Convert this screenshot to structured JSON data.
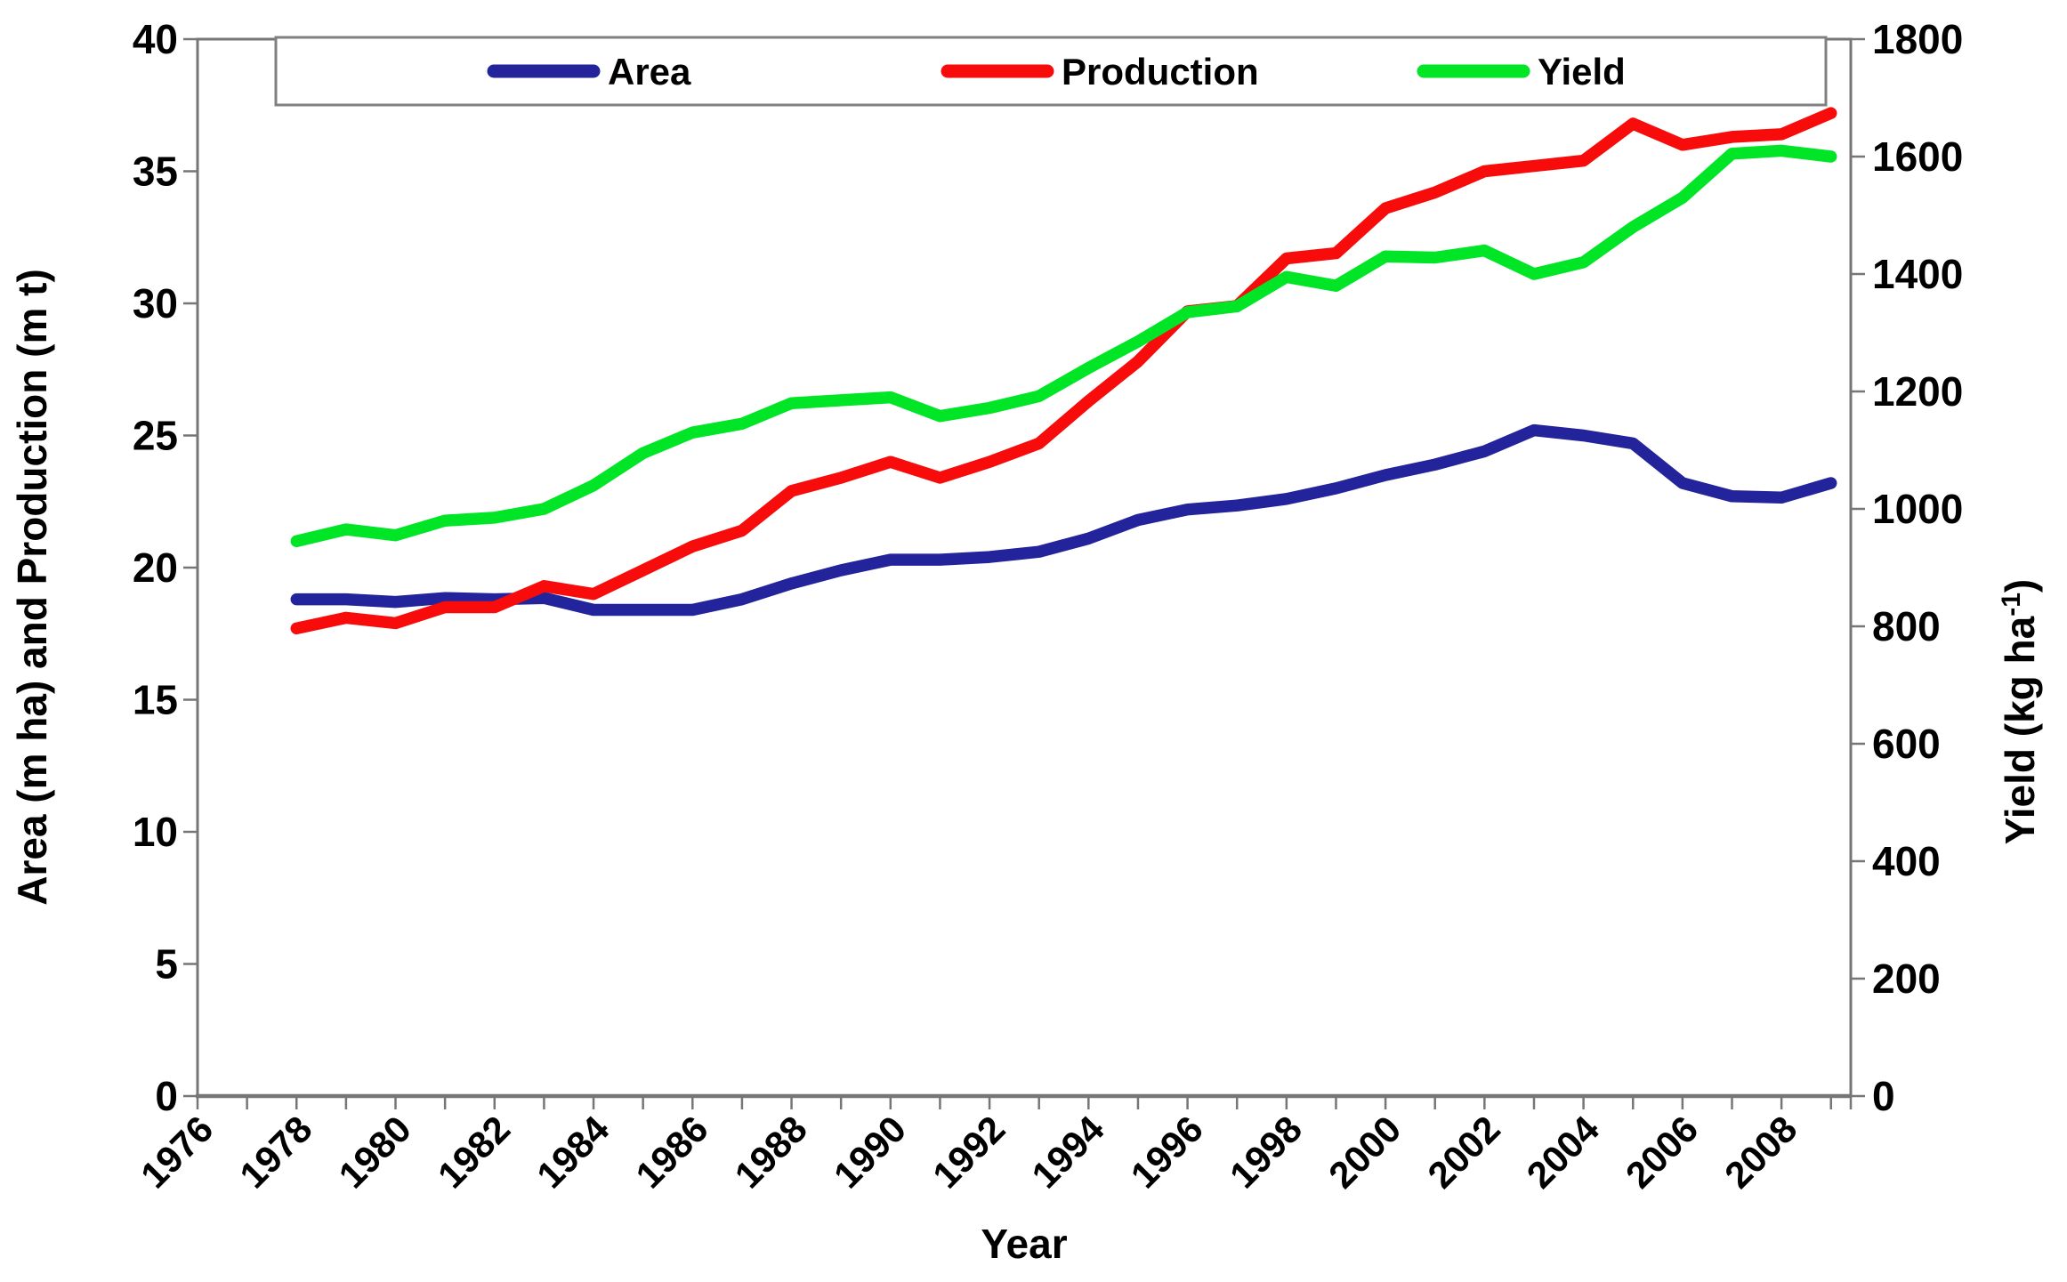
{
  "chart_data": {
    "type": "line",
    "title": "",
    "x": [
      1978,
      1979,
      1980,
      1981,
      1982,
      1983,
      1984,
      1985,
      1986,
      1987,
      1988,
      1989,
      1990,
      1991,
      1992,
      1993,
      1994,
      1995,
      1996,
      1997,
      1998,
      1999,
      2000,
      2001,
      2002,
      2003,
      2004,
      2005,
      2006,
      2007,
      2008,
      2009
    ],
    "series": [
      {
        "name": "Area",
        "axis": "left",
        "color": "#23239b",
        "values": [
          18.8,
          18.8,
          18.7,
          18.85,
          18.8,
          18.85,
          18.4,
          18.4,
          18.4,
          18.8,
          19.4,
          19.9,
          20.3,
          20.3,
          20.4,
          20.6,
          21.1,
          21.8,
          22.2,
          22.35,
          22.6,
          23.0,
          23.5,
          23.9,
          24.4,
          25.2,
          25.0,
          24.7,
          23.2,
          22.7,
          22.65,
          23.2
        ]
      },
      {
        "name": "Production",
        "axis": "left",
        "color": "#f80b0b",
        "values": [
          17.7,
          18.1,
          17.9,
          18.5,
          18.5,
          19.3,
          19.0,
          19.9,
          20.8,
          21.4,
          22.9,
          23.4,
          24.0,
          23.4,
          24.0,
          24.7,
          26.3,
          27.8,
          29.7,
          29.9,
          31.7,
          31.9,
          33.6,
          34.2,
          35.0,
          35.2,
          35.4,
          36.8,
          36.0,
          36.3,
          36.4,
          37.2
        ]
      },
      {
        "name": "Yield",
        "axis": "right",
        "color": "#00e626",
        "values": [
          945,
          965,
          955,
          980,
          985,
          1000,
          1040,
          1095,
          1130,
          1145,
          1180,
          1185,
          1190,
          1158,
          1172,
          1192,
          1240,
          1285,
          1335,
          1345,
          1395,
          1380,
          1430,
          1428,
          1440,
          1400,
          1420,
          1480,
          1530,
          1605,
          1610,
          1600
        ]
      }
    ],
    "x_axis": {
      "label": "Year",
      "min": 1976,
      "max": 2009.4,
      "tick_step": 1,
      "tick_labels": [
        "1976",
        "1978",
        "1980",
        "1982",
        "1984",
        "1986",
        "1988",
        "1990",
        "1992",
        "1994",
        "1996",
        "1998",
        "2000",
        "2002",
        "2004",
        "2006",
        "2008"
      ]
    },
    "left_axis": {
      "label": "Area (m ha) and Production (m t)",
      "min": 0,
      "max": 40,
      "tick_step": 5,
      "tick_labels": [
        "0",
        "5",
        "10",
        "15",
        "20",
        "25",
        "30",
        "35",
        "40"
      ]
    },
    "right_axis": {
      "label_main": "Yield (kg ha",
      "label_sup": "-1",
      "label_close": ")",
      "min": 0,
      "max": 1800,
      "tick_step": 200,
      "tick_labels": [
        "0",
        "200",
        "400",
        "600",
        "800",
        "1000",
        "1200",
        "1400",
        "1600",
        "1800"
      ]
    },
    "legend": {
      "position": "top",
      "items": [
        "Area",
        "Production",
        "Yield"
      ]
    },
    "grid": false
  },
  "colors": {
    "axis": "#767676",
    "text": "#000000",
    "background": "#ffffff",
    "legend_border": "#808080",
    "area_series": "#23239b",
    "production_series": "#f80b0b",
    "yield_series": "#00e626"
  }
}
